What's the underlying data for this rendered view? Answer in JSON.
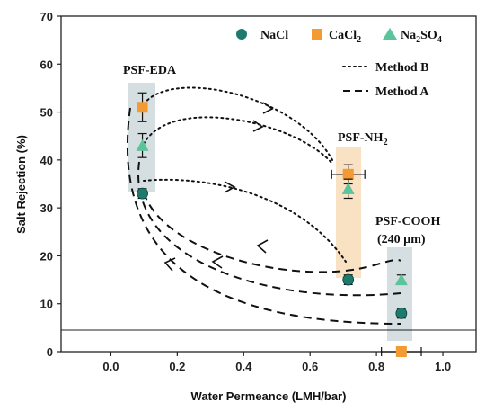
{
  "chart_data": {
    "type": "scatter",
    "title": "",
    "xlabel": "Water Permeance (LMH/bar)",
    "ylabel": "Salt Rejection (%)",
    "xlim": [
      -0.15,
      1.1
    ],
    "ylim": [
      0,
      70
    ],
    "xticks": [
      "0.0",
      "0.2",
      "0.4",
      "0.6",
      "0.8",
      "1.0"
    ],
    "yticks": [
      "0",
      "10",
      "20",
      "30",
      "40",
      "50",
      "60",
      "70"
    ],
    "grid": false,
    "legend_position": "top-right",
    "colors": {
      "NaCl": "#1f7a6e",
      "CaCl2": "#f39a32",
      "Na2SO4": "#5cc49a"
    },
    "series": [
      {
        "name": "NaCl",
        "marker": "circle",
        "color": "#1f7a6e",
        "points": [
          {
            "x": 0.095,
            "y": 33,
            "yerr": 1
          },
          {
            "x": 0.715,
            "y": 15,
            "yerr": 1
          },
          {
            "x": 0.875,
            "y": 8,
            "yerr": 1
          }
        ]
      },
      {
        "name": "CaCl2",
        "marker": "square",
        "color": "#f39a32",
        "points": [
          {
            "x": 0.095,
            "y": 51,
            "yerr": 3
          },
          {
            "x": 0.715,
            "y": 37,
            "yerr": 2,
            "xerr": 0.05
          },
          {
            "x": 0.875,
            "y": 0,
            "xerr": 0.06
          }
        ]
      },
      {
        "name": "Na2SO4",
        "marker": "triangle",
        "color": "#5cc49a",
        "points": [
          {
            "x": 0.095,
            "y": 43,
            "yerr": 2.5
          },
          {
            "x": 0.715,
            "y": 34,
            "yerr": 2
          },
          {
            "x": 0.875,
            "y": 15,
            "yerr": 1
          }
        ]
      }
    ],
    "legend": {
      "nacl": "NaCl",
      "cacl2_main": "CaCl",
      "cacl2_sub": "2",
      "na2so4_a": "Na",
      "na2so4_sub1": "2",
      "na2so4_b": "SO",
      "na2so4_sub2": "4",
      "method_b": "Method B",
      "method_a": "Method A"
    },
    "labels": {
      "psf_eda": "PSF-EDA",
      "psf_nh2_main": "PSF-NH",
      "psf_nh2_sub": "2",
      "psf_cooh": "PSF-COOH",
      "psf_cooh_thick": "(240 µm)"
    }
  }
}
